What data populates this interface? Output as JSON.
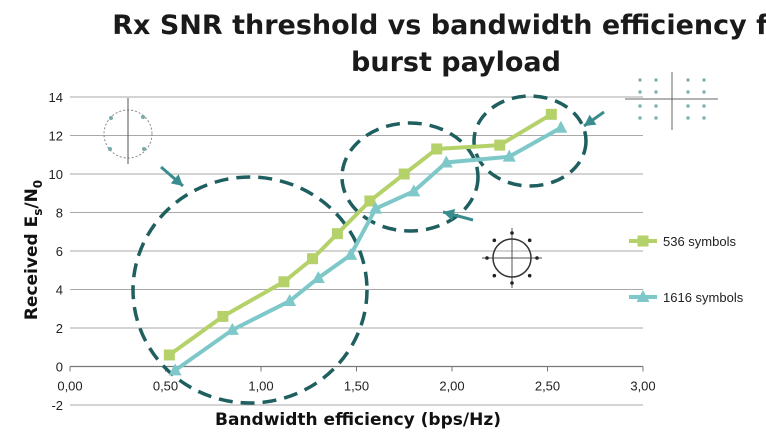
{
  "chart_data": {
    "type": "line",
    "title_lines": [
      "Rx SNR threshold vs bandwidth efficiency for",
      "burst payload"
    ],
    "xlabel": "Bandwidth efficiency (bps/Hz)",
    "ylabel_main": "Received E",
    "ylabel_sub1": "s",
    "ylabel_mid": "/N",
    "ylabel_sub2": "0",
    "xlim": [
      0,
      3
    ],
    "ylim": [
      -2,
      14
    ],
    "x_ticks": [
      0,
      0.5,
      1,
      1.5,
      2,
      2.5,
      3
    ],
    "x_tick_labels": [
      "0,00",
      "0,50",
      "1,00",
      "1,50",
      "2,00",
      "2,50",
      "3,00"
    ],
    "y_ticks": [
      -2,
      0,
      2,
      4,
      6,
      8,
      10,
      12,
      14
    ],
    "y_tick_labels": [
      "-2",
      "0",
      "2",
      "4",
      "6",
      "8",
      "10",
      "12",
      "14"
    ],
    "grid": "horizontal",
    "legend_position": "right",
    "series": [
      {
        "name": "536 symbols",
        "color": "#b5d16a",
        "marker": "square",
        "x": [
          0.52,
          0.8,
          1.12,
          1.27,
          1.4,
          1.57,
          1.75,
          1.92,
          2.25,
          2.52
        ],
        "y": [
          0.6,
          2.6,
          4.4,
          5.6,
          6.9,
          8.6,
          10.0,
          11.3,
          11.5,
          13.1
        ]
      },
      {
        "name": "1616 symbols",
        "color": "#7ec8c9",
        "marker": "triangle",
        "x": [
          0.55,
          0.85,
          1.15,
          1.3,
          1.47,
          1.6,
          1.8,
          1.97,
          2.3,
          2.57
        ],
        "y": [
          -0.2,
          1.9,
          3.4,
          4.6,
          5.8,
          8.2,
          9.1,
          10.6,
          10.9,
          12.4
        ]
      }
    ]
  },
  "annotations": {
    "circle_color": "#1f5f5f",
    "arrow_color": "#3a8d8f",
    "constellation_icons": [
      "bpsk-constellation-icon",
      "psk8-constellation-icon",
      "apsk-constellation-icon"
    ]
  }
}
